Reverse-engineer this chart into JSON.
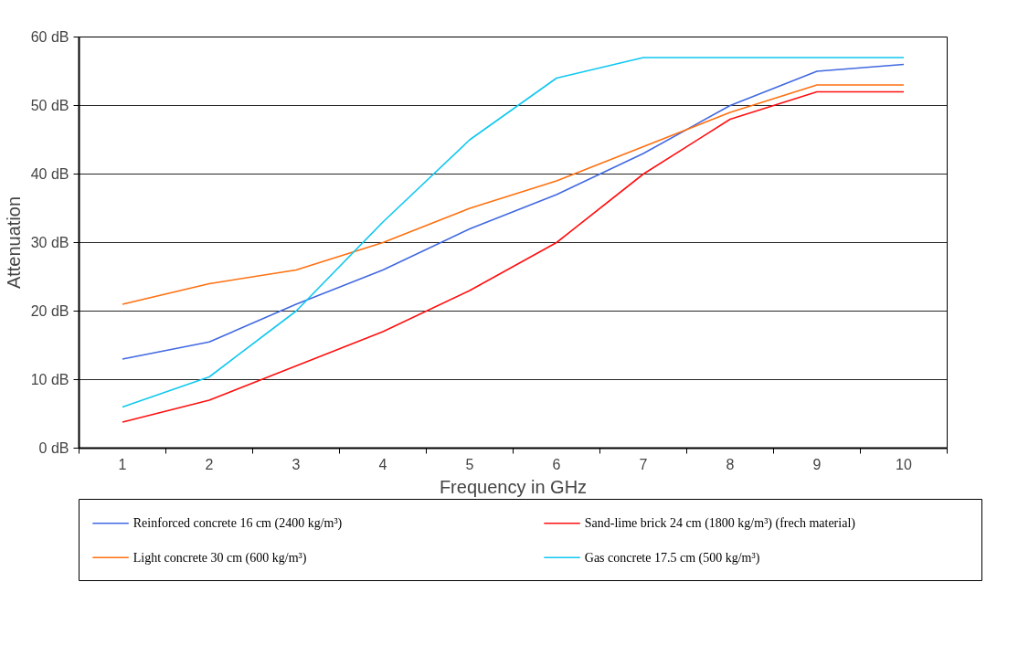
{
  "chart_data": {
    "type": "line",
    "xlabel": "Frequency in GHz",
    "ylabel": "Attenuation",
    "categories": [
      "1",
      "2",
      "3",
      "4",
      "5",
      "6",
      "7",
      "8",
      "9",
      "10"
    ],
    "ylim": [
      0,
      60
    ],
    "yticks": [
      {
        "value": 0,
        "label": "0 dB"
      },
      {
        "value": 10,
        "label": "10 dB"
      },
      {
        "value": 20,
        "label": "20 dB"
      },
      {
        "value": 30,
        "label": "30 dB"
      },
      {
        "value": 40,
        "label": "40 dB"
      },
      {
        "value": 50,
        "label": "50 dB"
      },
      {
        "value": 60,
        "label": "60 dB"
      }
    ],
    "grid": "y",
    "legend": "bottom",
    "line_style": "solid",
    "marker": "none",
    "series": [
      {
        "name": "Reinforced concrete 16 cm (2400 kg/m³)",
        "color": "#4169e1",
        "values": [
          13,
          15.5,
          21,
          26,
          32,
          37,
          43,
          50,
          55,
          56
        ]
      },
      {
        "name": "Sand-lime brick 24 cm (1800 kg/m³) (frech material)",
        "color": "#ff1010",
        "values": [
          3.8,
          7,
          12,
          17,
          23,
          30,
          40,
          48,
          52,
          52
        ]
      },
      {
        "name": "Light concrete 30 cm (600 kg/m³)",
        "color": "#ff7010",
        "values": [
          21,
          24,
          26,
          30,
          35,
          39,
          44,
          49,
          53,
          53
        ]
      },
      {
        "name": "Gas concrete 17.5 cm (500 kg/m³)",
        "color": "#10c8f0",
        "values": [
          6,
          10.4,
          20,
          33,
          45,
          54,
          57,
          57,
          57,
          57
        ]
      }
    ]
  }
}
